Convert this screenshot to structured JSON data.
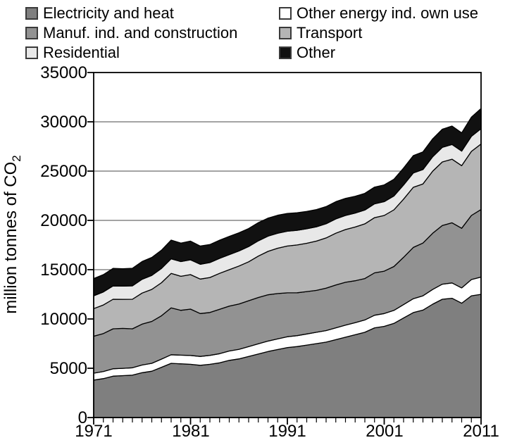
{
  "legend": {
    "items": [
      {
        "label": "Electricity and heat",
        "color": "#7f7f7f"
      },
      {
        "label": "Other energy ind. own use",
        "color": "#ffffff"
      },
      {
        "label": "Manuf. ind. and construction",
        "color": "#929292"
      },
      {
        "label": "Transport",
        "color": "#b5b5b5"
      },
      {
        "label": "Residential",
        "color": "#e8e8e8"
      },
      {
        "label": "Other",
        "color": "#111111"
      }
    ]
  },
  "axes": {
    "y": {
      "label_main": "million tonnes of CO",
      "label_sub": "2",
      "ticks": [
        35000,
        30000,
        25000,
        20000,
        15000,
        10000,
        5000,
        0
      ],
      "min": 0,
      "max": 35000
    },
    "x": {
      "ticks": [
        1971,
        1981,
        1991,
        2001,
        2011
      ],
      "min": 1971,
      "max": 2011
    }
  },
  "chart_data": {
    "type": "area",
    "stacked": true,
    "title": "",
    "xlabel": "",
    "ylabel": "million tonnes of CO2",
    "xlim": [
      1971,
      2011
    ],
    "ylim": [
      0,
      35000
    ],
    "grid": true,
    "legend_position": "top",
    "x": [
      1971,
      1972,
      1973,
      1974,
      1975,
      1976,
      1977,
      1978,
      1979,
      1980,
      1981,
      1982,
      1983,
      1984,
      1985,
      1986,
      1987,
      1988,
      1989,
      1990,
      1991,
      1992,
      1993,
      1994,
      1995,
      1996,
      1997,
      1998,
      1999,
      2000,
      2001,
      2002,
      2003,
      2004,
      2005,
      2006,
      2007,
      2008,
      2009,
      2010,
      2011
    ],
    "series": [
      {
        "name": "Electricity and heat",
        "color": "#7f7f7f",
        "values": [
          3800,
          3950,
          4200,
          4250,
          4300,
          4550,
          4700,
          5100,
          5500,
          5450,
          5400,
          5300,
          5400,
          5550,
          5800,
          5950,
          6200,
          6450,
          6700,
          6900,
          7100,
          7200,
          7350,
          7500,
          7650,
          7900,
          8150,
          8400,
          8650,
          9100,
          9250,
          9550,
          10100,
          10650,
          10900,
          11500,
          12000,
          12100,
          11600,
          12350,
          12500
        ]
      },
      {
        "name": "Other energy ind. own use",
        "color": "#ffffff",
        "values": [
          700,
          720,
          750,
          740,
          750,
          780,
          800,
          830,
          870,
          880,
          900,
          900,
          910,
          930,
          950,
          970,
          1000,
          1030,
          1060,
          1080,
          1100,
          1110,
          1130,
          1150,
          1170,
          1200,
          1220,
          1230,
          1250,
          1280,
          1300,
          1320,
          1360,
          1410,
          1450,
          1490,
          1530,
          1560,
          1550,
          1650,
          1750
        ]
      },
      {
        "name": "Manuf. ind. and construction",
        "color": "#929292",
        "values": [
          3750,
          3850,
          4050,
          4050,
          3950,
          4150,
          4250,
          4400,
          4750,
          4550,
          4700,
          4350,
          4350,
          4500,
          4550,
          4600,
          4650,
          4700,
          4700,
          4600,
          4450,
          4350,
          4300,
          4250,
          4300,
          4350,
          4350,
          4250,
          4200,
          4300,
          4300,
          4450,
          4800,
          5200,
          5350,
          5700,
          5950,
          6100,
          6050,
          6500,
          6850
        ]
      },
      {
        "name": "Transport",
        "color": "#b5b5b5",
        "values": [
          2800,
          2900,
          3000,
          2950,
          3000,
          3150,
          3250,
          3350,
          3500,
          3450,
          3500,
          3500,
          3550,
          3650,
          3700,
          3850,
          3950,
          4200,
          4400,
          4600,
          4750,
          4850,
          4900,
          5000,
          5100,
          5250,
          5350,
          5450,
          5550,
          5600,
          5650,
          5750,
          5900,
          6100,
          6000,
          6300,
          6450,
          6450,
          6350,
          6500,
          6650
        ]
      },
      {
        "name": "Residential",
        "color": "#e8e8e8",
        "values": [
          1300,
          1320,
          1350,
          1340,
          1360,
          1400,
          1420,
          1450,
          1480,
          1490,
          1500,
          1500,
          1510,
          1520,
          1530,
          1530,
          1540,
          1550,
          1540,
          1520,
          1500,
          1480,
          1470,
          1450,
          1440,
          1450,
          1430,
          1410,
          1400,
          1400,
          1400,
          1410,
          1430,
          1450,
          1460,
          1470,
          1480,
          1490,
          1480,
          1530,
          1550
        ]
      },
      {
        "name": "Other",
        "color": "#111111",
        "values": [
          1750,
          1760,
          1780,
          1770,
          1780,
          1800,
          1820,
          1850,
          1900,
          1880,
          1900,
          1850,
          1830,
          1840,
          1850,
          1840,
          1830,
          1840,
          1830,
          1820,
          1800,
          1780,
          1760,
          1750,
          1740,
          1750,
          1730,
          1700,
          1690,
          1700,
          1700,
          1690,
          1720,
          1760,
          1790,
          1810,
          1840,
          1870,
          1850,
          1950,
          2050
        ]
      }
    ]
  }
}
